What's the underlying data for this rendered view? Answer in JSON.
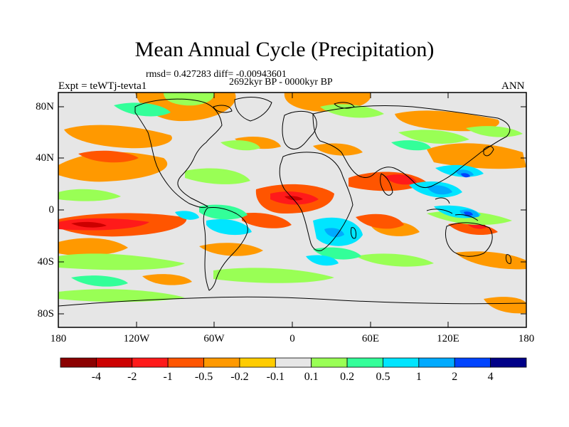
{
  "title": "Mean Annual Cycle (Precipitation)",
  "stats_line": "rmsd= 0.427283 diff= -0.00943601",
  "period": "2692kyr BP - 0000kyr BP",
  "experiment": "Expt = teWTj-tevta1",
  "season": "ANN",
  "lat_ticks": [
    "80N",
    "40N",
    "0",
    "40S",
    "80S"
  ],
  "lon_ticks": [
    "180",
    "120W",
    "60W",
    "0",
    "60E",
    "120E",
    "180"
  ],
  "colorbar": {
    "labels": [
      "-4",
      "-2",
      "-1",
      "-0.5",
      "-0.2",
      "-0.1",
      "0.1",
      "0.2",
      "0.5",
      "1",
      "2",
      "4"
    ],
    "colors": [
      "#8b0000",
      "#cc0000",
      "#ff1a1a",
      "#ff5500",
      "#ff9900",
      "#ffcc00",
      "#e6e6e6",
      "#99ff55",
      "#33ff99",
      "#00e5ff",
      "#00aaff",
      "#0044ff",
      "#000088"
    ]
  },
  "map": {
    "background_color": "#e6e6e6"
  }
}
